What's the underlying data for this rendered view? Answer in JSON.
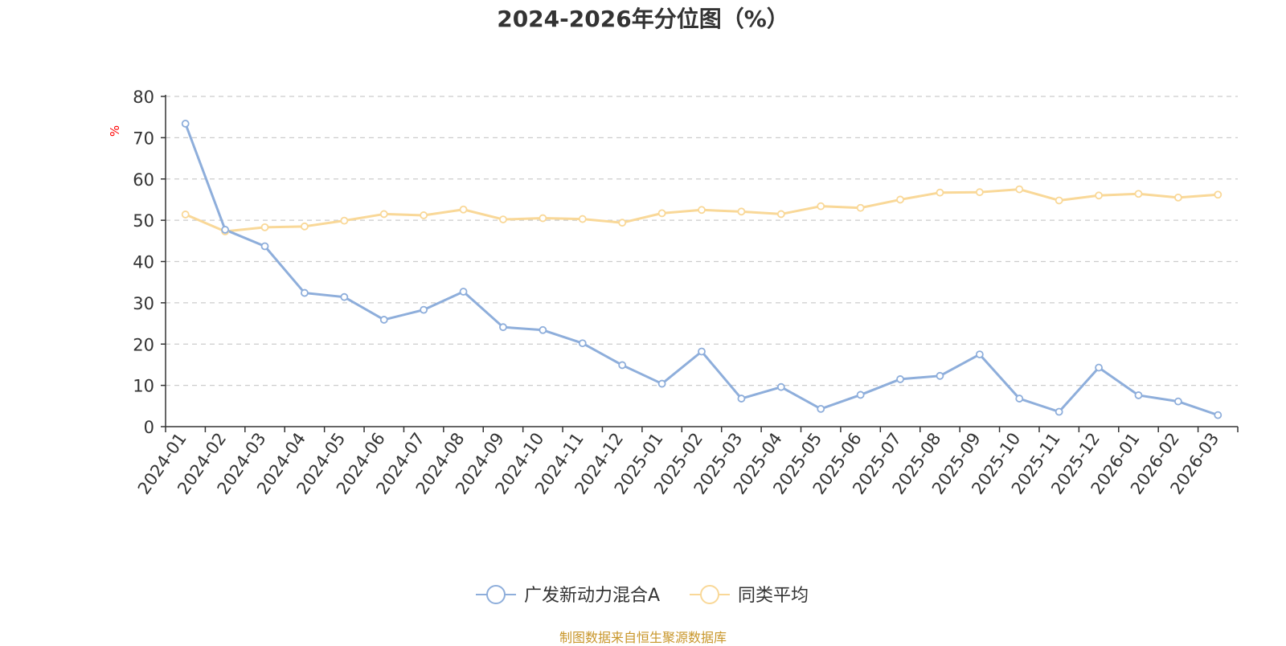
{
  "chart_data": {
    "type": "line",
    "title": "2024-2026年分位图（%）",
    "ylabel": "%",
    "ylim": [
      0,
      80
    ],
    "yticks": [
      0,
      10,
      20,
      30,
      40,
      50,
      60,
      70,
      80
    ],
    "grid": true,
    "legend_position": "bottom",
    "categories": [
      "2024-01",
      "2024-02",
      "2024-03",
      "2024-04",
      "2024-05",
      "2024-06",
      "2024-07",
      "2024-08",
      "2024-09",
      "2024-10",
      "2024-11",
      "2024-12",
      "2025-01",
      "2025-02",
      "2025-03",
      "2025-04",
      "2025-05",
      "2025-06",
      "2025-07",
      "2025-08",
      "2025-09",
      "2025-10",
      "2025-11",
      "2025-12",
      "2026-01",
      "2026-02",
      "2026-03"
    ],
    "series": [
      {
        "name": "广发新动力混合A",
        "color": "#8eaedb",
        "values": [
          73.4,
          47.7,
          43.7,
          32.4,
          31.4,
          25.9,
          28.3,
          32.7,
          24.1,
          23.4,
          20.2,
          14.9,
          10.4,
          18.2,
          6.8,
          9.6,
          4.3,
          7.7,
          11.5,
          12.3,
          17.5,
          6.8,
          3.6,
          14.3,
          7.6,
          6.1,
          2.8
        ]
      },
      {
        "name": "同类平均",
        "color": "#f9d898",
        "values": [
          51.4,
          47.3,
          48.3,
          48.5,
          49.9,
          51.5,
          51.2,
          52.6,
          50.2,
          50.5,
          50.3,
          49.4,
          51.7,
          52.5,
          52.1,
          51.5,
          53.4,
          53.0,
          55.0,
          56.7,
          56.8,
          57.5,
          54.8,
          56.0,
          56.4,
          55.5,
          56.2
        ]
      }
    ]
  },
  "footer": {
    "source": "制图数据来自恒生聚源数据库"
  }
}
